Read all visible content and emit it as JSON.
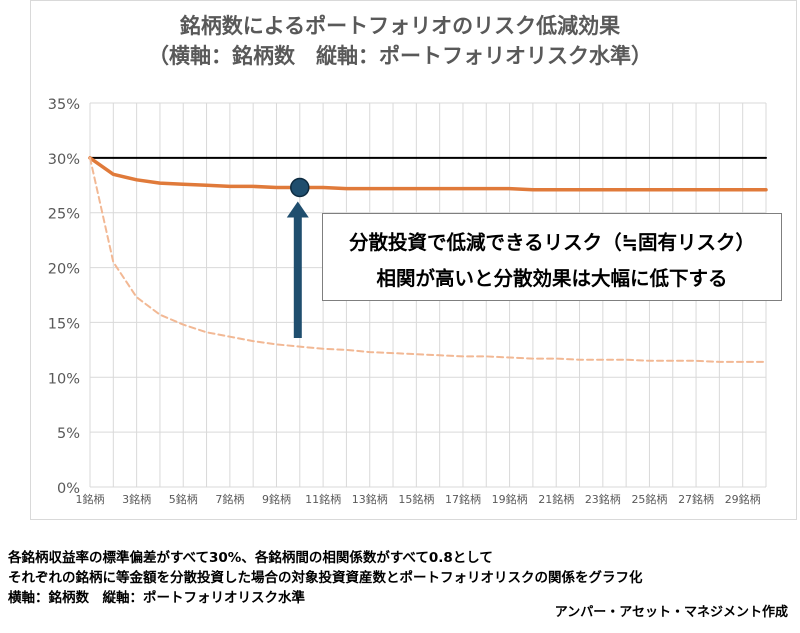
{
  "chart_data": {
    "type": "line",
    "title": "銘柄数によるポートフォリオのリスク低減効果",
    "subtitle": "（横軸：銘柄数　縦軸：ポートフォリオリスク水準）",
    "x": [
      1,
      2,
      3,
      4,
      5,
      6,
      7,
      8,
      9,
      10,
      11,
      12,
      13,
      14,
      15,
      16,
      17,
      18,
      19,
      20,
      21,
      22,
      23,
      24,
      25,
      26,
      27,
      28,
      29,
      30
    ],
    "x_tick_labels": [
      "1銘柄",
      "3銘柄",
      "5銘柄",
      "7銘柄",
      "9銘柄",
      "11銘柄",
      "13銘柄",
      "15銘柄",
      "17銘柄",
      "19銘柄",
      "21銘柄",
      "23銘柄",
      "25銘柄",
      "27銘柄",
      "29銘柄"
    ],
    "y_ticks": [
      "0%",
      "5%",
      "10%",
      "15%",
      "20%",
      "25%",
      "30%",
      "35%"
    ],
    "ylim": [
      0,
      35
    ],
    "grid": true,
    "series": [
      {
        "color": "#000000",
        "style": "solid",
        "values": [
          30,
          30,
          30,
          30,
          30,
          30,
          30,
          30,
          30,
          30,
          30,
          30,
          30,
          30,
          30,
          30,
          30,
          30,
          30,
          30,
          30,
          30,
          30,
          30,
          30,
          30,
          30,
          30,
          30,
          30
        ]
      },
      {
        "color": "#e07a3a",
        "style": "solid",
        "values": [
          30.0,
          28.5,
          28.0,
          27.7,
          27.6,
          27.5,
          27.4,
          27.4,
          27.3,
          27.3,
          27.3,
          27.2,
          27.2,
          27.2,
          27.2,
          27.2,
          27.2,
          27.2,
          27.2,
          27.1,
          27.1,
          27.1,
          27.1,
          27.1,
          27.1,
          27.1,
          27.1,
          27.1,
          27.1,
          27.1
        ]
      },
      {
        "color": "#f2b894",
        "style": "dashed",
        "values": [
          30.0,
          20.5,
          17.3,
          15.7,
          14.8,
          14.1,
          13.7,
          13.3,
          13.0,
          12.8,
          12.6,
          12.5,
          12.3,
          12.2,
          12.1,
          12.0,
          11.9,
          11.9,
          11.8,
          11.7,
          11.7,
          11.6,
          11.6,
          11.6,
          11.5,
          11.5,
          11.5,
          11.4,
          11.4,
          11.4
        ]
      }
    ],
    "annotation": {
      "line1": "分散投資で低減できるリスク（≒固有リスク）",
      "line2": "相関が高いと分散効果は大幅に低下する",
      "marker_x": 10,
      "marker_y": 27.3
    }
  },
  "notes": {
    "line1": "各銘柄収益率の標準偏差がすべて30%、各銘柄間の相関係数がすべて0.8として",
    "line2": "それぞれの銘柄に等金額を分散投資した場合の対象投資資産数とポートフォリオリスクの関係をグラフ化",
    "line3": "横軸：銘柄数　縦軸：ポートフォリオリスク水準"
  },
  "credit": "アンパー・アセット・マネジメント作成"
}
